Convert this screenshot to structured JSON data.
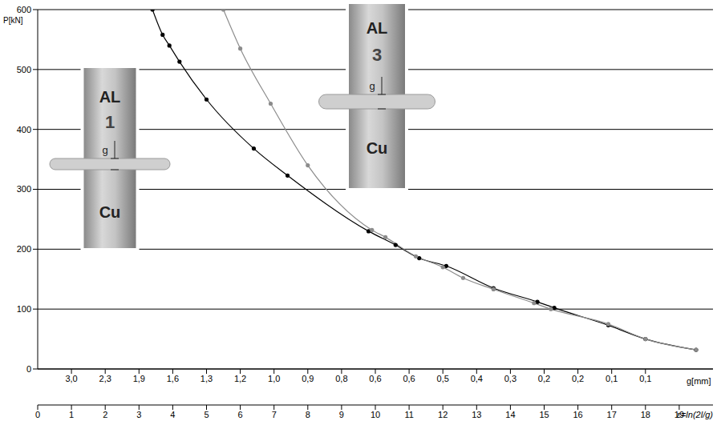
{
  "chart_data": {
    "type": "line",
    "ylabel": "P[kN]",
    "xlabel": "g[mm]",
    "x2label": "ε=ln(2l/g)",
    "xlim": [
      0,
      20
    ],
    "xticks": [
      0,
      1,
      2,
      3,
      4,
      5,
      6,
      7,
      8,
      9,
      10,
      11,
      12,
      13,
      14,
      15,
      16,
      17,
      18,
      19
    ],
    "ylim": [
      0,
      600
    ],
    "yticks": [
      0,
      100,
      200,
      300,
      400,
      500,
      600
    ],
    "x2lim": [
      0,
      20
    ],
    "x2ticks": [
      {
        "value": 1,
        "label": "3,0"
      },
      {
        "value": 2,
        "label": "2,3"
      },
      {
        "value": 3,
        "label": "1,9"
      },
      {
        "value": 4,
        "label": "1,6"
      },
      {
        "value": 5,
        "label": "1,3"
      },
      {
        "value": 6,
        "label": "1,2"
      },
      {
        "value": 7,
        "label": "1,0"
      },
      {
        "value": 8,
        "label": "0,9"
      },
      {
        "value": 9,
        "label": "0,8"
      },
      {
        "value": 10,
        "label": "0,6"
      },
      {
        "value": 11,
        "label": "0,6"
      },
      {
        "value": 12,
        "label": "0,5"
      },
      {
        "value": 13,
        "label": "0,4"
      },
      {
        "value": 14,
        "label": "0,3"
      },
      {
        "value": 15,
        "label": "0,2"
      },
      {
        "value": 16,
        "label": "0,2"
      },
      {
        "value": 17,
        "label": "0,1"
      },
      {
        "value": 18,
        "label": "0,1"
      }
    ],
    "grid": true,
    "series": [
      {
        "color": "#000000",
        "marker": "circle",
        "x": [
          3.4,
          3.7,
          3.9,
          4.2,
          5.0,
          6.4,
          7.4,
          9.8,
          10.6,
          11.3,
          12.1,
          13.5,
          14.8,
          15.3,
          16.9,
          18.0,
          19.5
        ],
        "values": [
          600,
          558,
          540,
          513,
          450,
          368,
          323,
          230,
          207,
          185,
          172,
          135,
          112,
          102,
          73,
          50,
          32
        ]
      },
      {
        "color": "#8c8c8c",
        "marker": "circle",
        "x": [
          5.5,
          6.0,
          6.9,
          8.0,
          9.9,
          10.3,
          11.2,
          12.0,
          12.6,
          13.5,
          14.7,
          15.2,
          16.9,
          18.0,
          19.5
        ],
        "values": [
          600,
          535,
          443,
          340,
          232,
          220,
          188,
          170,
          152,
          133,
          110,
          100,
          75,
          50,
          32
        ]
      }
    ],
    "samples": [
      {
        "top": "AL",
        "number": "1",
        "bottom": "Cu",
        "gap": "g"
      },
      {
        "top": "AL",
        "number": "3",
        "bottom": "Cu",
        "gap": "g"
      }
    ]
  }
}
